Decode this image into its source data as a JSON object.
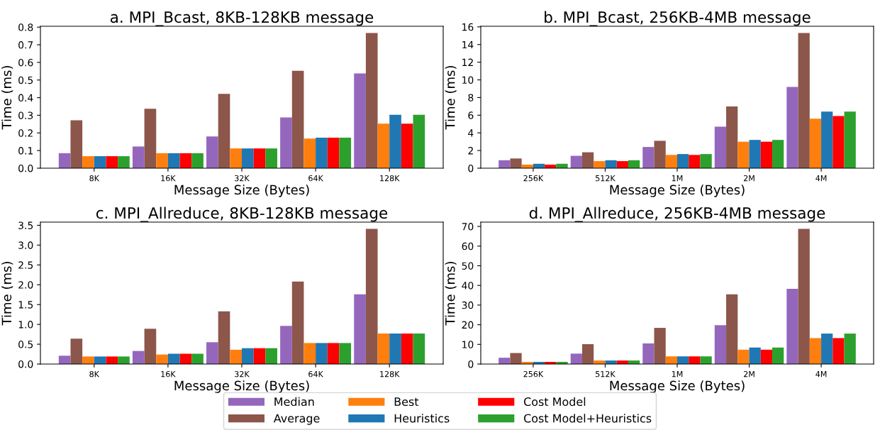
{
  "chart_data": [
    {
      "type": "bar",
      "title": "a. MPI_Bcast, 8KB-128KB message",
      "xlabel": "Message Size (Bytes)",
      "ylabel": "Time (ms)",
      "categories": [
        "8K",
        "16K",
        "32K",
        "64K",
        "128K"
      ],
      "ylim": [
        0,
        0.805
      ],
      "yticks": [
        {
          "value": 0,
          "label": "0.0"
        },
        0.1,
        0.2,
        0.3,
        0.4,
        0.5,
        0.6,
        0.7,
        0.8
      ],
      "grid": false,
      "legend": "bottom",
      "series": [
        {
          "name": "Median",
          "color": "#9467bd",
          "values": [
            0.085,
            0.123,
            0.18,
            0.288,
            0.537
          ]
        },
        {
          "name": "Average",
          "color": "#8c564b",
          "values": [
            0.272,
            0.337,
            0.422,
            0.552,
            0.767
          ]
        },
        {
          "name": "Best",
          "color": "#ff7f0e",
          "values": [
            0.068,
            0.085,
            0.112,
            0.168,
            0.253
          ]
        },
        {
          "name": "Heuristics",
          "color": "#1f77b4",
          "values": [
            0.068,
            0.085,
            0.112,
            0.173,
            0.303
          ]
        },
        {
          "name": "Cost Model",
          "color": "#ff0000",
          "values": [
            0.068,
            0.085,
            0.112,
            0.173,
            0.253
          ]
        },
        {
          "name": "Cost Model+Heuristics",
          "color": "#2ca02c",
          "values": [
            0.068,
            0.085,
            0.112,
            0.173,
            0.303
          ]
        }
      ]
    },
    {
      "type": "bar",
      "title": "b. MPI_Bcast, 256KB-4MB message",
      "xlabel": "Message Size (Bytes)",
      "ylabel": "Time (ms)",
      "categories": [
        "256K",
        "512K",
        "1M",
        "2M",
        "4M"
      ],
      "ylim": [
        0,
        16.07
      ],
      "yticks": [
        0,
        2,
        4,
        6,
        8,
        10,
        12,
        14,
        16
      ],
      "grid": false,
      "series": [
        {
          "color": "#9467bd",
          "values": [
            0.9,
            1.4,
            2.4,
            4.7,
            9.2
          ]
        },
        {
          "color": "#8c564b",
          "values": [
            1.1,
            1.8,
            3.1,
            7.0,
            15.3
          ]
        },
        {
          "color": "#ff7f0e",
          "values": [
            0.4,
            0.8,
            1.5,
            3.0,
            5.6
          ]
        },
        {
          "color": "#1f77b4",
          "values": [
            0.5,
            0.9,
            1.6,
            3.2,
            6.4
          ]
        },
        {
          "color": "#ff0000",
          "values": [
            0.4,
            0.8,
            1.5,
            3.0,
            5.9
          ]
        },
        {
          "color": "#2ca02c",
          "values": [
            0.5,
            0.9,
            1.6,
            3.2,
            6.4
          ]
        }
      ]
    },
    {
      "type": "bar",
      "title": "c. MPI_Allreduce, 8KB-128KB message",
      "xlabel": "Message Size (Bytes)",
      "ylabel": "Time (ms)",
      "categories": [
        "8K",
        "16K",
        "32K",
        "64K",
        "128K"
      ],
      "ylim": [
        0,
        3.58
      ],
      "yticks": [
        {
          "value": 0,
          "label": "0.0"
        },
        0.5,
        {
          "value": 1,
          "label": "1.0"
        },
        1.5,
        {
          "value": 2,
          "label": "2.0"
        },
        2.5,
        {
          "value": 3,
          "label": "3.0"
        },
        3.5
      ],
      "grid": false,
      "series": [
        {
          "color": "#9467bd",
          "values": [
            0.21,
            0.33,
            0.55,
            0.96,
            1.76
          ]
        },
        {
          "color": "#8c564b",
          "values": [
            0.64,
            0.89,
            1.33,
            2.08,
            3.41
          ]
        },
        {
          "color": "#ff7f0e",
          "values": [
            0.19,
            0.24,
            0.36,
            0.53,
            0.77
          ]
        },
        {
          "color": "#1f77b4",
          "values": [
            0.19,
            0.26,
            0.4,
            0.53,
            0.77
          ]
        },
        {
          "color": "#ff0000",
          "values": [
            0.19,
            0.26,
            0.4,
            0.53,
            0.77
          ]
        },
        {
          "color": "#2ca02c",
          "values": [
            0.19,
            0.26,
            0.4,
            0.53,
            0.77
          ]
        }
      ]
    },
    {
      "type": "bar",
      "title": "d. MPI_Allreduce, 256KB-4MB message",
      "xlabel": "Message Size (Bytes)",
      "ylabel": "Time (ms)",
      "categories": [
        "256K",
        "512K",
        "1M",
        "2M",
        "4M"
      ],
      "ylim": [
        0,
        72.2
      ],
      "yticks": [
        0,
        10,
        20,
        30,
        40,
        50,
        60,
        70
      ],
      "grid": false,
      "series": [
        {
          "color": "#9467bd",
          "values": [
            3.2,
            5.3,
            10.5,
            19.8,
            38.3
          ]
        },
        {
          "color": "#8c564b",
          "values": [
            5.6,
            10.1,
            18.4,
            35.5,
            68.8
          ]
        },
        {
          "color": "#ff7f0e",
          "values": [
            1.1,
            1.8,
            3.9,
            7.3,
            13.2
          ]
        },
        {
          "color": "#1f77b4",
          "values": [
            1.1,
            1.8,
            3.9,
            8.4,
            15.5
          ]
        },
        {
          "color": "#ff0000",
          "values": [
            1.1,
            1.8,
            3.9,
            7.3,
            13.2
          ]
        },
        {
          "color": "#2ca02c",
          "values": [
            1.1,
            1.8,
            3.9,
            8.4,
            15.5
          ]
        }
      ]
    }
  ]
}
